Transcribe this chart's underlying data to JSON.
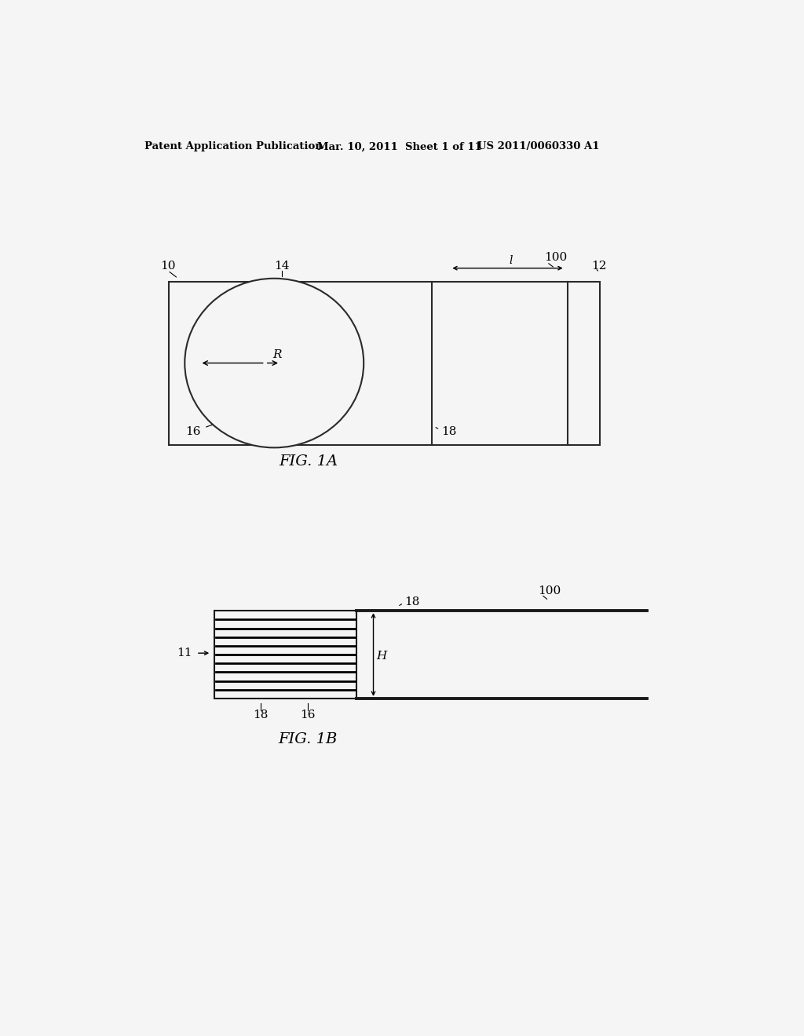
{
  "bg_color": "#f5f5f5",
  "header_text1": "Patent Application Publication",
  "header_text2": "Mar. 10, 2011  Sheet 1 of 11",
  "header_text3": "US 2011/0060330 A1",
  "fig1a_label": "FIG. 1A",
  "fig1b_label": "FIG. 1B",
  "label_10": "10",
  "label_11": "11",
  "label_12": "12",
  "label_14": "14",
  "label_16_1a": "16",
  "label_16_1b": "16",
  "label_18_1a": "18",
  "label_18_1b_bot": "18",
  "label_18_1b_right": "18",
  "label_100_1a": "100",
  "label_100_1b": "100",
  "label_R": "R",
  "label_H": "H",
  "label_l": "l"
}
